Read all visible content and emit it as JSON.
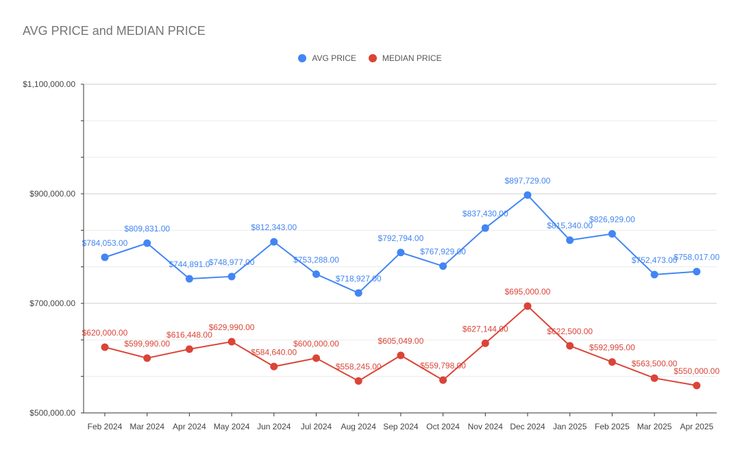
{
  "chart_data": {
    "type": "line",
    "title": "AVG PRICE and MEDIAN PRICE",
    "xlabel": "",
    "ylabel": "",
    "categories": [
      "Feb 2024",
      "Mar 2024",
      "Apr 2024",
      "May 2024",
      "Jun 2024",
      "Jul 2024",
      "Aug 2024",
      "Sep 2024",
      "Oct 2024",
      "Nov 2024",
      "Dec 2024",
      "Jan 2025",
      "Feb 2025",
      "Mar 2025",
      "Apr 2025"
    ],
    "ylim": [
      500000,
      1100000
    ],
    "y_ticks": [
      "$500,000.00",
      "$700,000.00",
      "$900,000.00",
      "$1,100,000.00"
    ],
    "y_tick_values": [
      500000,
      700000,
      900000,
      1100000
    ],
    "grid": true,
    "legend_position": "top-center",
    "series": [
      {
        "name": "AVG PRICE",
        "color": "#4285F4",
        "values": [
          784053,
          809831,
          744891,
          748977,
          812343,
          753288,
          718927,
          792794,
          767929,
          837430,
          897729,
          815340,
          826929,
          752473,
          758017
        ],
        "labels": [
          "$784,053.00",
          "$809,831.00",
          "$744,891.0",
          "$748,977.00",
          "$812,343.00",
          "$753,288.00",
          "$718,927.00",
          "$792,794.00",
          "$767,929.00",
          "$837,430.00",
          "$897,729.00",
          "$815,340.00",
          "$826,929.00",
          "$752,473.00",
          "$758,017.00"
        ]
      },
      {
        "name": "MEDIAN PRICE",
        "color": "#DB4437",
        "values": [
          620000,
          599990,
          616448,
          629990,
          584640,
          600000,
          558245,
          605049,
          559798,
          627144,
          695000,
          622500,
          592995,
          563500,
          550000
        ],
        "labels": [
          "$620,000.00",
          "$599,990.00",
          "$616,448.00",
          "$629,990.00",
          "$584,640.00",
          "$600,000.00",
          "$558,245.00",
          "$605,049.00",
          "$559,798.00",
          "$627,144.00",
          "$695,000.00",
          "$622,500.00",
          "$592,995.00",
          "$563,500.00",
          "$550,000.00"
        ]
      }
    ]
  }
}
